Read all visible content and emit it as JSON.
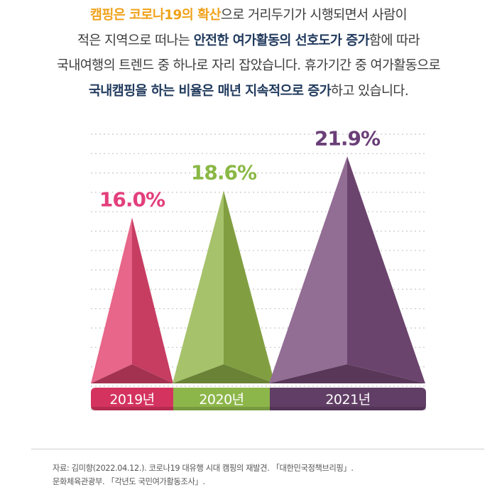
{
  "intro": {
    "lines": [
      [
        {
          "text": "캠핑은 코로나19의 확산",
          "style": "orange"
        },
        {
          "text": "으로 거리두기가 시행되면서 사람이",
          "style": "plain"
        }
      ],
      [
        {
          "text": "적은 지역으로 떠나는 ",
          "style": "plain"
        },
        {
          "text": "안전한 여가활동의 선호도가 증가",
          "style": "navy"
        },
        {
          "text": "함에 따라",
          "style": "plain"
        }
      ],
      [
        {
          "text": "국내여행의 트렌드 중 하나로 자리 잡았습니다. 휴가기간 중 여가활동으로",
          "style": "plain"
        }
      ],
      [
        {
          "text": "국내캠핑을 하는 비율은 매년 지속적으로 증가",
          "style": "navy"
        },
        {
          "text": "하고 있습니다.",
          "style": "plain"
        }
      ]
    ]
  },
  "chart_data": {
    "type": "bar",
    "categories": [
      "2019년",
      "2020년",
      "2021년"
    ],
    "values": [
      16.0,
      18.6,
      21.9
    ],
    "value_labels": [
      "16.0%",
      "18.6%",
      "21.9%"
    ],
    "unit": "%",
    "colors": [
      "#e2456f",
      "#93b54a",
      "#7a4d7c"
    ],
    "label_colors": [
      "#e33f7c",
      "#8ab845",
      "#6a3f78"
    ],
    "category_colors": [
      "#d4335f",
      "#8db64a",
      "#613e65"
    ],
    "gridline_color": "#c8c8c8",
    "grid": true
  },
  "source": {
    "line1": "자료: 김미향(2022.04.12.). 코로나19 대유행 시대 캠핑의 재발견. 「대한민국정책브리핑」.",
    "line2": "문화체육관광부. 「각년도 국민여가활동조사」."
  }
}
